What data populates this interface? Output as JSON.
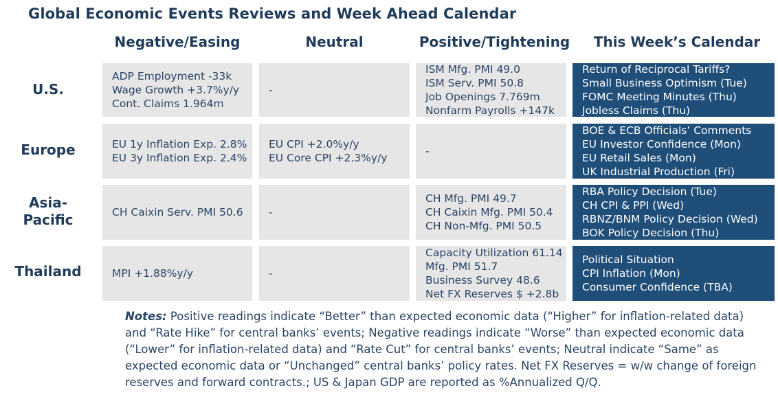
{
  "title": "Global Economic Events Reviews and Week Ahead Calendar",
  "columns": [
    "Negative/Easing",
    "Neutral",
    "Positive/Tightening",
    "This Week’s Calendar"
  ],
  "rows": [
    {
      "region": "U.S.",
      "negative": [
        "ADP Employment -33k",
        "Wage Growth +3.7%y/y",
        "Cont. Claims 1.964m"
      ],
      "neutral": [
        "-"
      ],
      "positive": [
        "ISM Mfg. PMI 49.0",
        "ISM Serv. PMI 50.8",
        "Job Openings 7.769m",
        "Nonfarm Payrolls +147k"
      ],
      "calendar": [
        "Return of Reciprocal Tariffs?",
        "Small Business Optimism (Tue)",
        "FOMC Meeting Minutes (Thu)",
        "Jobless Claims (Thu)"
      ]
    },
    {
      "region": "Europe",
      "negative": [
        "EU 1y Inflation Exp. 2.8%",
        "EU 3y Inflation Exp. 2.4%"
      ],
      "neutral": [
        "EU CPI +2.0%y/y",
        "EU Core CPI +2.3%y/y"
      ],
      "positive": [
        "-"
      ],
      "calendar": [
        "BOE & ECB Officials’ Comments",
        "EU Investor Confidence (Mon)",
        "EU Retail Sales (Mon)",
        "UK Industrial Production (Fri)"
      ]
    },
    {
      "region_line1": "Asia-",
      "region_line2": "Pacific",
      "negative": [
        "CH Caixin Serv. PMI 50.6"
      ],
      "neutral": [
        "-"
      ],
      "positive": [
        "CH Mfg. PMI 49.7",
        "CH Caixin Mfg. PMI 50.4",
        "CH Non-Mfg. PMI 50.5"
      ],
      "calendar": [
        "RBA Policy Decision (Tue)",
        "CH CPI & PPI (Wed)",
        "RBNZ/BNM Policy Decision (Wed)",
        "BOK Policy Decision (Thu)"
      ]
    },
    {
      "region": "Thailand",
      "negative": [
        "MPI +1.88%y/y"
      ],
      "neutral": [
        "-"
      ],
      "positive": [
        "Capacity Utilization 61.14",
        "Mfg. PMI 51.7",
        "Business Survey 48.6",
        "Net FX Reserves $ +2.8b"
      ],
      "calendar": [
        "Political Situation",
        "CPI Inflation (Mon)",
        "Consumer Confidence (TBA)"
      ]
    }
  ],
  "notes": {
    "label": "Notes:",
    "text": " Positive readings indicate “Better” than expected economic data (“Higher” for inflation-related data) and “Rate Hike” for central banks’ events; Negative readings indicate “Worse” than expected economic data (“Lower” for inflation-related data) and “Rate Cut” for central banks’ events; Neutral indicate “Same” as expected economic data or “Unchanged” central banks’ policy rates. Net FX Reserves = w/w change of foreign reserves and forward contracts.; US & Japan GDP are reported as %Annualized Q/Q."
  },
  "colors": {
    "navy": "#1f4e79",
    "text": "#1f3b5a",
    "cell_bg": "#e6e6e6"
  }
}
